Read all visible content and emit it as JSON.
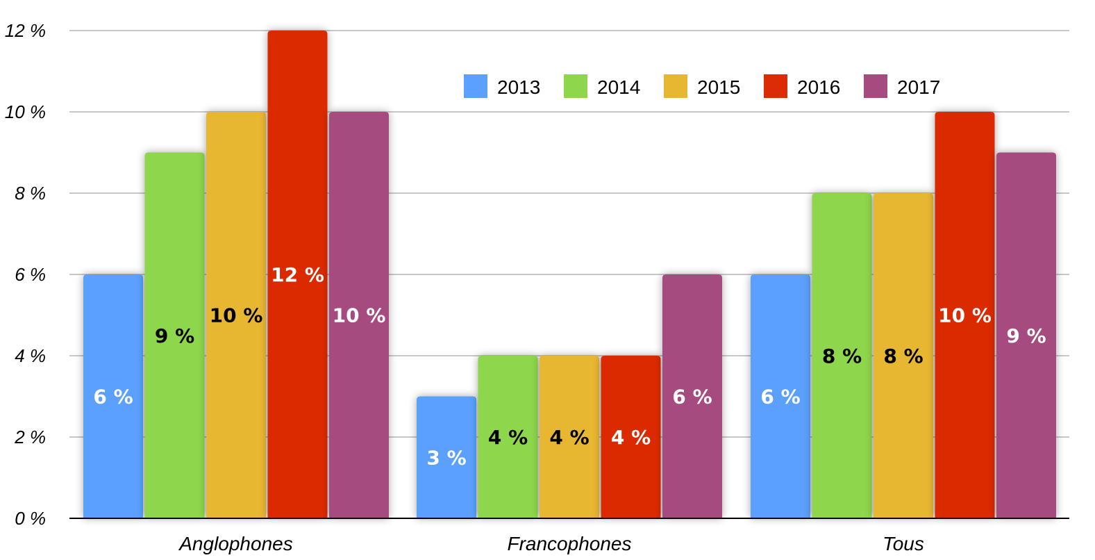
{
  "chart_data": {
    "type": "bar",
    "categories": [
      "Anglophones",
      "Francophones",
      "Tous"
    ],
    "series": [
      {
        "name": "2013",
        "values": [
          6,
          3,
          6
        ],
        "labels": [
          "6 %",
          "3 %",
          "6 %"
        ],
        "color": "#5aa0fc",
        "label_color": "#ffffff"
      },
      {
        "name": "2014",
        "values": [
          9,
          4,
          8
        ],
        "labels": [
          "9 %",
          "4 %",
          "8 %"
        ],
        "color": "#8ed64c",
        "label_color": "#000000"
      },
      {
        "name": "2015",
        "values": [
          10,
          4,
          8
        ],
        "labels": [
          "10 %",
          "4 %",
          "8 %"
        ],
        "color": "#e8b731",
        "label_color": "#000000"
      },
      {
        "name": "2016",
        "values": [
          12,
          4,
          10
        ],
        "labels": [
          "12 %",
          "4 %",
          "10 %"
        ],
        "color": "#db2c06",
        "label_color": "#ffffff"
      },
      {
        "name": "2017",
        "values": [
          10,
          6,
          9
        ],
        "labels": [
          "10 %",
          "6 %",
          "9 %"
        ],
        "color": "#a64b80",
        "label_color": "#ffffff"
      }
    ],
    "ylim": [
      0,
      12
    ],
    "yticks": [
      0,
      2,
      4,
      6,
      8,
      10,
      12
    ],
    "ytick_labels": [
      "0 %",
      "2 %",
      "4 %",
      "6 %",
      "8 %",
      "10 %",
      "12 %"
    ],
    "grid": true,
    "legend_position": "top-right",
    "title": "",
    "xlabel": "",
    "ylabel": ""
  }
}
